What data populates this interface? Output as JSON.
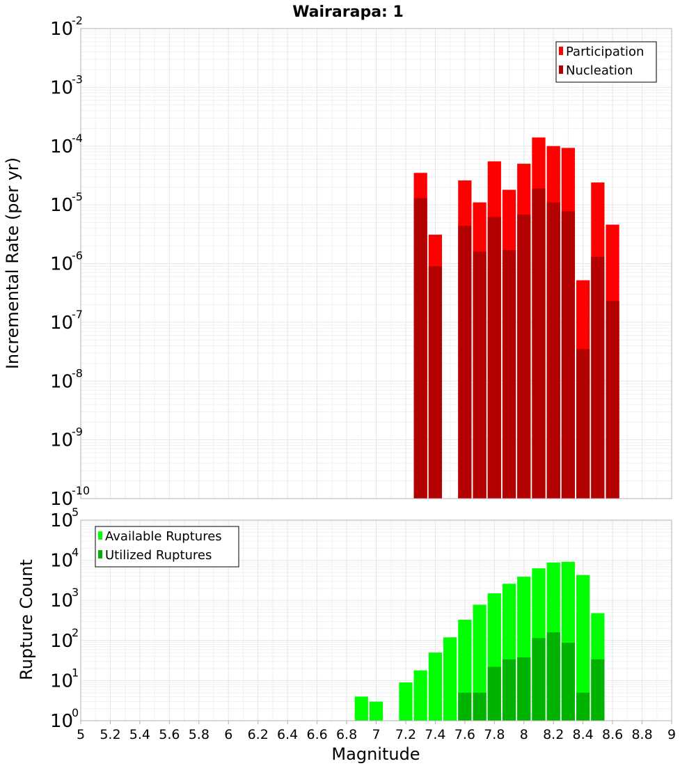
{
  "chart_data": [
    {
      "type": "bar",
      "title": "Wairarapa: 1",
      "ylabel": "Incremental Rate (per yr)",
      "xlabel": "",
      "yscale": "log",
      "ylim_exp": [
        -10,
        -2
      ],
      "xlim": [
        5,
        9
      ],
      "grid": true,
      "legend_position": "top-right",
      "bar_width": 0.1,
      "x": [
        7.3,
        7.4,
        7.6,
        7.7,
        7.8,
        7.9,
        8.0,
        8.1,
        8.2,
        8.3,
        8.4,
        8.5,
        8.6
      ],
      "series": [
        {
          "name": "Participation",
          "color": "#ff0000",
          "values": [
            3.5e-05,
            3.1e-06,
            2.6e-05,
            1.1e-05,
            5.5e-05,
            1.8e-05,
            5e-05,
            0.00014,
            0.0001,
            9.3e-05,
            5.2e-07,
            2.4e-05,
            4.6e-06
          ]
        },
        {
          "name": "Nucleation",
          "color": "#b30000",
          "values": [
            1.3e-05,
            9e-07,
            4.4e-06,
            1.6e-06,
            6.2e-06,
            1.7e-06,
            6.8e-06,
            1.9e-05,
            1.1e-05,
            7.8e-06,
            3.5e-08,
            1.3e-06,
            2.3e-07
          ]
        }
      ]
    },
    {
      "type": "bar",
      "ylabel": "Rupture Count",
      "xlabel": "Magnitude",
      "yscale": "log",
      "ylim_exp": [
        0,
        5
      ],
      "xlim": [
        5,
        9
      ],
      "grid": true,
      "legend_position": "top-left",
      "bar_width": 0.1,
      "xticks": [
        "5",
        "5.2",
        "5.4",
        "5.6",
        "5.8",
        "6",
        "6.2",
        "6.4",
        "6.6",
        "6.8",
        "7",
        "7.2",
        "7.4",
        "7.6",
        "7.8",
        "8",
        "8.2",
        "8.4",
        "8.6",
        "8.8",
        "9"
      ],
      "series": [
        {
          "name": "Available Ruptures",
          "color": "#00ff00",
          "x": [
            6.9,
            7.0,
            7.2,
            7.3,
            7.4,
            7.5,
            7.6,
            7.7,
            7.8,
            7.9,
            8.0,
            8.1,
            8.2,
            8.3,
            8.4,
            8.5
          ],
          "values": [
            4,
            3,
            9,
            18,
            50,
            120,
            330,
            780,
            1500,
            2600,
            3900,
            6300,
            8800,
            9200,
            4300,
            480
          ]
        },
        {
          "name": "Utilized Ruptures",
          "color": "#00b300",
          "x": [
            7.3,
            7.6,
            7.7,
            7.8,
            7.9,
            8.0,
            8.1,
            8.2,
            8.3,
            8.4,
            8.5,
            8.6
          ],
          "values": [
            1,
            5,
            5,
            22,
            34,
            38,
            115,
            160,
            88,
            5,
            34,
            1
          ]
        }
      ]
    }
  ],
  "y_tick_base": "10"
}
